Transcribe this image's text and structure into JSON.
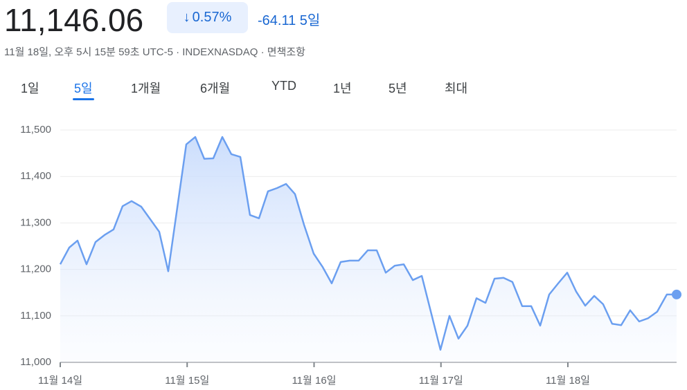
{
  "header": {
    "price": "11,146.06",
    "change_percent": "0.57%",
    "change": "-64.11",
    "period": "5일",
    "subtitle": "11월 18일, 오후 5시 15분 59초 UTC-5 · INDEXNASDAQ · ",
    "disclaimer": "면책조항"
  },
  "tabs": {
    "items": [
      "1일",
      "5일",
      "1개월",
      "6개월",
      "YTD",
      "1년",
      "5년",
      "최대"
    ],
    "active": 1
  },
  "chart_data": {
    "type": "line",
    "color": "#6b9ff0",
    "x": [
      0,
      0.071,
      0.136,
      0.207,
      0.278,
      0.349,
      0.42,
      0.491,
      0.562,
      0.638,
      0.709,
      0.78,
      0.851,
      0.993,
      1.064,
      1.135,
      1.206,
      1.277,
      1.348,
      1.419,
      1.495,
      1.566,
      1.637,
      1.708,
      1.779,
      1.85,
      1.921,
      1.997,
      2.068,
      2.139,
      2.21,
      2.281,
      2.352,
      2.423,
      2.494,
      2.565,
      2.636,
      2.707,
      2.778,
      2.849,
      2.996,
      3.067,
      3.138,
      3.209,
      3.28,
      3.351,
      3.422,
      3.493,
      3.563,
      3.64,
      3.711,
      3.782,
      3.853,
      3.924,
      3.995,
      4.066,
      4.137,
      4.208,
      4.278,
      4.349,
      4.42,
      4.491,
      4.562,
      4.633,
      4.704,
      4.78,
      4.857
    ],
    "values": [
      11211,
      11247,
      11262,
      11211,
      11259,
      11274,
      11286,
      11336,
      11347,
      11335,
      11308,
      11281,
      11196,
      11469,
      11485,
      11438,
      11439,
      11485,
      11448,
      11442,
      11317,
      11310,
      11368,
      11375,
      11384,
      11362,
      11296,
      11234,
      11205,
      11170,
      11216,
      11219,
      11219,
      11241,
      11241,
      11193,
      11208,
      11211,
      11177,
      11186,
      11027,
      11100,
      11051,
      11079,
      11138,
      11128,
      11180,
      11182,
      11173,
      11121,
      11121,
      11079,
      11146,
      11170,
      11193,
      11152,
      11122,
      11143,
      11125,
      11083,
      11080,
      11112,
      11088,
      11095,
      11109,
      11146,
      11146
    ],
    "xlim": [
      0,
      4.857
    ],
    "xticks": [
      {
        "value": 0,
        "label": "11월 14일"
      },
      {
        "value": 1,
        "label": "11월 15일"
      },
      {
        "value": 2,
        "label": "11월 16일"
      },
      {
        "value": 3,
        "label": "11월 17일"
      },
      {
        "value": 4,
        "label": "11월 18일"
      }
    ],
    "ylim": [
      11000,
      11500
    ],
    "yticks": [
      {
        "value": 11000,
        "label": "11,000"
      },
      {
        "value": 11100,
        "label": "11,100"
      },
      {
        "value": 11200,
        "label": "11,200"
      },
      {
        "value": 11300,
        "label": "11,300"
      },
      {
        "value": 11400,
        "label": "11,400"
      },
      {
        "value": 11500,
        "label": "11,500"
      }
    ],
    "grid": true
  }
}
